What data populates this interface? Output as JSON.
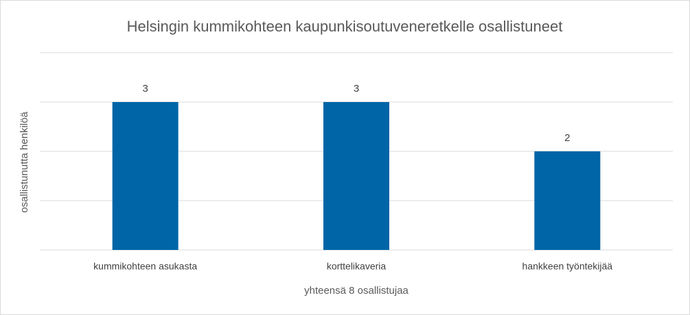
{
  "chart_data": {
    "type": "bar",
    "title": "Helsingin kummikohteen kaupunkisoutuveneretkelle osallistuneet",
    "x_label": "yhteensä 8 osallistujaa",
    "y_label": "osallistunutta henkilöä",
    "categories": [
      "kummikohteen asukasta",
      "korttelikaveria",
      "hankkeen työntekijää"
    ],
    "values": [
      3,
      3,
      2
    ],
    "color": "#0065a6",
    "ylim": [
      0,
      4
    ],
    "yticks": [
      0,
      1,
      2,
      3,
      4
    ],
    "grid": true
  }
}
